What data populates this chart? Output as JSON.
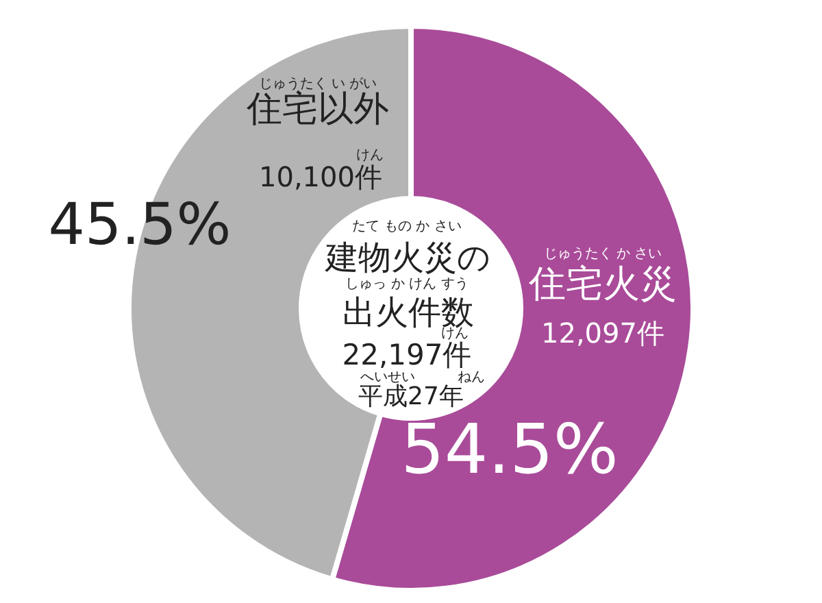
{
  "chart_data": {
    "type": "donut",
    "title": "建物火災の出火件数",
    "categories": [
      "住宅火災",
      "住宅以外"
    ],
    "values": [
      54.5,
      45.5
    ],
    "value_labels": [
      "54.5%",
      "45.5%"
    ],
    "colors": [
      "#a94b99",
      "#b4b4b4"
    ],
    "legend": false,
    "annotations": [
      "たて もの か さい",
      "しゅっ か けん すう",
      "けん",
      "22,197件",
      "へいせい",
      "ねん",
      "平成27年",
      "じゅうたく い がい",
      "けん",
      "10,100件",
      "じゅうたく か さい",
      "12,097件"
    ]
  }
}
